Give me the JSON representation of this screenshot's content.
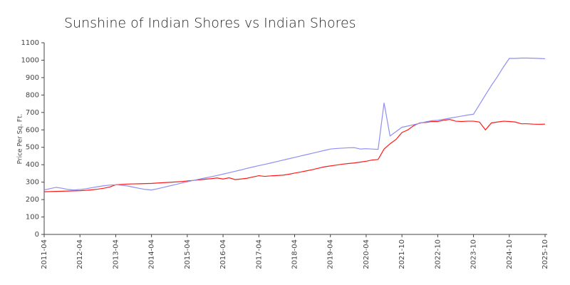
{
  "chart_data": {
    "type": "line",
    "title": "Sunshine of Indian Shores vs Indian Shores",
    "y_label": "Price Per Sq. Ft.",
    "categories": [
      "2011-04",
      null,
      null,
      null,
      null,
      null,
      "2012-04",
      null,
      null,
      null,
      null,
      null,
      "2013-04",
      null,
      null,
      null,
      null,
      null,
      "2014-04",
      null,
      null,
      null,
      null,
      null,
      "2015-04",
      null,
      null,
      null,
      null,
      null,
      "2016-04",
      null,
      null,
      null,
      null,
      null,
      "2017-04",
      null,
      null,
      null,
      null,
      null,
      "2018-04",
      null,
      null,
      null,
      null,
      null,
      "2019-04",
      null,
      null,
      null,
      null,
      null,
      "2020-04",
      null,
      null,
      null,
      null,
      null,
      "2021-10",
      null,
      null,
      null,
      null,
      null,
      "2022-10",
      null,
      null,
      null,
      null,
      null,
      "2023-10",
      null,
      null,
      null,
      null,
      null,
      "2024-10",
      null,
      null,
      null,
      null,
      null,
      "2025-10"
    ],
    "series": [
      {
        "color": "#ff1a1a",
        "values": [
          245,
          246,
          247,
          248,
          249,
          250,
          251,
          253,
          256,
          260,
          265,
          272,
          285,
          287,
          289,
          290,
          291,
          292,
          293,
          295,
          297,
          299,
          301,
          303,
          307,
          310,
          313,
          317,
          320,
          324,
          318,
          325,
          315,
          318,
          322,
          330,
          337,
          333,
          336,
          338,
          340,
          345,
          352,
          358,
          365,
          372,
          380,
          388,
          393,
          398,
          403,
          407,
          410,
          415,
          420,
          427,
          430,
          490,
          520,
          545,
          585,
          600,
          625,
          640,
          643,
          648,
          648,
          655,
          660,
          650,
          648,
          650,
          650,
          645,
          600,
          640,
          645,
          650,
          648,
          645,
          635,
          635,
          633,
          632,
          633
        ]
      },
      {
        "color": "#8f8ff5",
        "values": [
          255,
          263,
          270,
          265,
          258,
          255,
          258,
          262,
          268,
          274,
          279,
          283,
          285,
          282,
          278,
          271,
          264,
          258,
          255,
          262,
          270,
          278,
          286,
          294,
          302,
          310,
          317,
          324,
          331,
          338,
          346,
          354,
          362,
          370,
          379,
          387,
          395,
          402,
          410,
          418,
          426,
          434,
          442,
          450,
          458,
          466,
          474,
          482,
          490,
          493,
          495,
          497,
          498,
          490,
          492,
          490,
          488,
          755,
          565,
          590,
          615,
          622,
          630,
          638,
          646,
          653,
          655,
          661,
          667,
          673,
          679,
          685,
          690,
          745,
          800,
          855,
          905,
          960,
          1010,
          1010,
          1012,
          1012,
          1011,
          1010,
          1008
        ]
      }
    ],
    "ylim": [
      0,
      1100
    ],
    "yticks": [
      0,
      100,
      200,
      300,
      400,
      500,
      600,
      700,
      800,
      900,
      1000,
      1100
    ]
  }
}
